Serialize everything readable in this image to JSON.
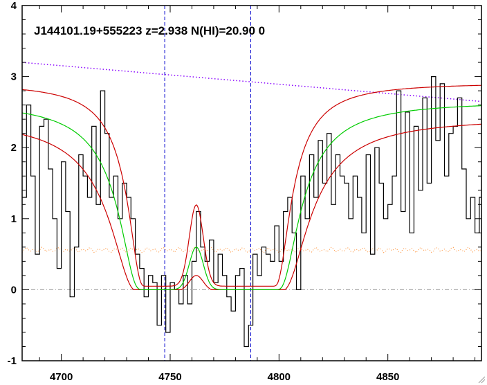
{
  "chart_data": {
    "type": "line",
    "title": "J144101.19+555223 z=2.938 N(HI)=20.90 0",
    "xlabel": "",
    "ylabel": "",
    "xlim": [
      4682,
      4893
    ],
    "ylim": [
      -1.0,
      4.0
    ],
    "x_ticks": [
      4700,
      4750,
      4800,
      4850
    ],
    "y_ticks": [
      -1,
      0,
      1,
      2,
      3,
      4
    ],
    "x_tick_labels": [
      "4700",
      "4750",
      "4800",
      "4850"
    ],
    "y_tick_labels": [
      "-1",
      "0",
      "1",
      "2",
      "3",
      "4"
    ],
    "vertical_markers": [
      4747.5,
      4787
    ],
    "zero_line": 0,
    "grid": false,
    "colors": {
      "flux": "#000000",
      "model_best": "#00cc00",
      "model_bounds": "#cc0000",
      "continuum": "#8800ff",
      "error": "#ff9944",
      "markers": "#0000cc",
      "zero": "#999999"
    },
    "series": [
      {
        "style": "step",
        "color": "#000000",
        "x": [
          4682,
          4684,
          4686,
          4688,
          4690,
          4692,
          4694,
          4696,
          4698,
          4700,
          4702,
          4704,
          4706,
          4708,
          4710,
          4712,
          4714,
          4716,
          4718,
          4720,
          4722,
          4724,
          4726,
          4728,
          4730,
          4732,
          4734,
          4736,
          4738,
          4740,
          4742,
          4744,
          4746,
          4748,
          4750,
          4752,
          4754,
          4756,
          4758,
          4760,
          4762,
          4764,
          4766,
          4768,
          4770,
          4772,
          4774,
          4776,
          4778,
          4780,
          4782,
          4784,
          4786,
          4788,
          4790,
          4792,
          4794,
          4796,
          4798,
          4800,
          4802,
          4804,
          4806,
          4808,
          4810,
          4812,
          4814,
          4816,
          4818,
          4820,
          4822,
          4824,
          4826,
          4828,
          4830,
          4832,
          4834,
          4836,
          4838,
          4840,
          4842,
          4844,
          4846,
          4848,
          4850,
          4852,
          4854,
          4856,
          4858,
          4860,
          4862,
          4864,
          4866,
          4868,
          4870,
          4872,
          4874,
          4876,
          4878,
          4880,
          4882,
          4884,
          4886,
          4888,
          4890,
          4892
        ],
        "y": [
          1.3,
          2.6,
          1.6,
          0.5,
          2.3,
          2.4,
          1.7,
          1.0,
          0.3,
          1.8,
          1.1,
          -0.1,
          0.6,
          1.9,
          1.6,
          1.3,
          2.3,
          1.2,
          2.8,
          2.2,
          1.3,
          1.6,
          1.0,
          1.5,
          1.3,
          1.0,
          0.5,
          0.3,
          -0.1,
          0.2,
          0.1,
          -0.5,
          0.2,
          -0.6,
          0.1,
          0.0,
          -0.2,
          0.2,
          -0.2,
          0.4,
          1.1,
          0.6,
          0.4,
          0.7,
          0.1,
          0.5,
          0.2,
          -0.1,
          -0.3,
          0.2,
          0.3,
          -0.8,
          -0.5,
          0.5,
          0.2,
          0.6,
          0.5,
          0.4,
          0.9,
          0.4,
          1.1,
          1.3,
          0.8,
          0.0,
          1.6,
          1.0,
          1.9,
          1.3,
          2.1,
          1.5,
          2.2,
          1.2,
          1.9,
          1.6,
          1.5,
          1.0,
          1.6,
          1.3,
          0.8,
          1.9,
          0.5,
          2.0,
          1.5,
          1.0,
          1.2,
          1.6,
          2.8,
          1.1,
          2.5,
          0.8,
          2.3,
          1.4,
          2.7,
          1.5,
          3.0,
          2.1,
          2.9,
          1.6,
          2.2,
          2.3,
          2.7,
          1.7,
          1.0,
          1.3,
          0.8,
          1.3
        ]
      }
    ],
    "models": {
      "center_left": 4742,
      "center_right": 4794,
      "damping_widths": [
        5.5,
        7.5,
        9.5
      ],
      "bump_center": 4762,
      "bump_heights": [
        1.06,
        0.6,
        0.24
      ],
      "bump_sigma": 3.2
    },
    "continuum": {
      "x0": 4682,
      "y0": 3.2,
      "x1": 4893,
      "y1": 2.65
    },
    "error_level": 0.56
  }
}
